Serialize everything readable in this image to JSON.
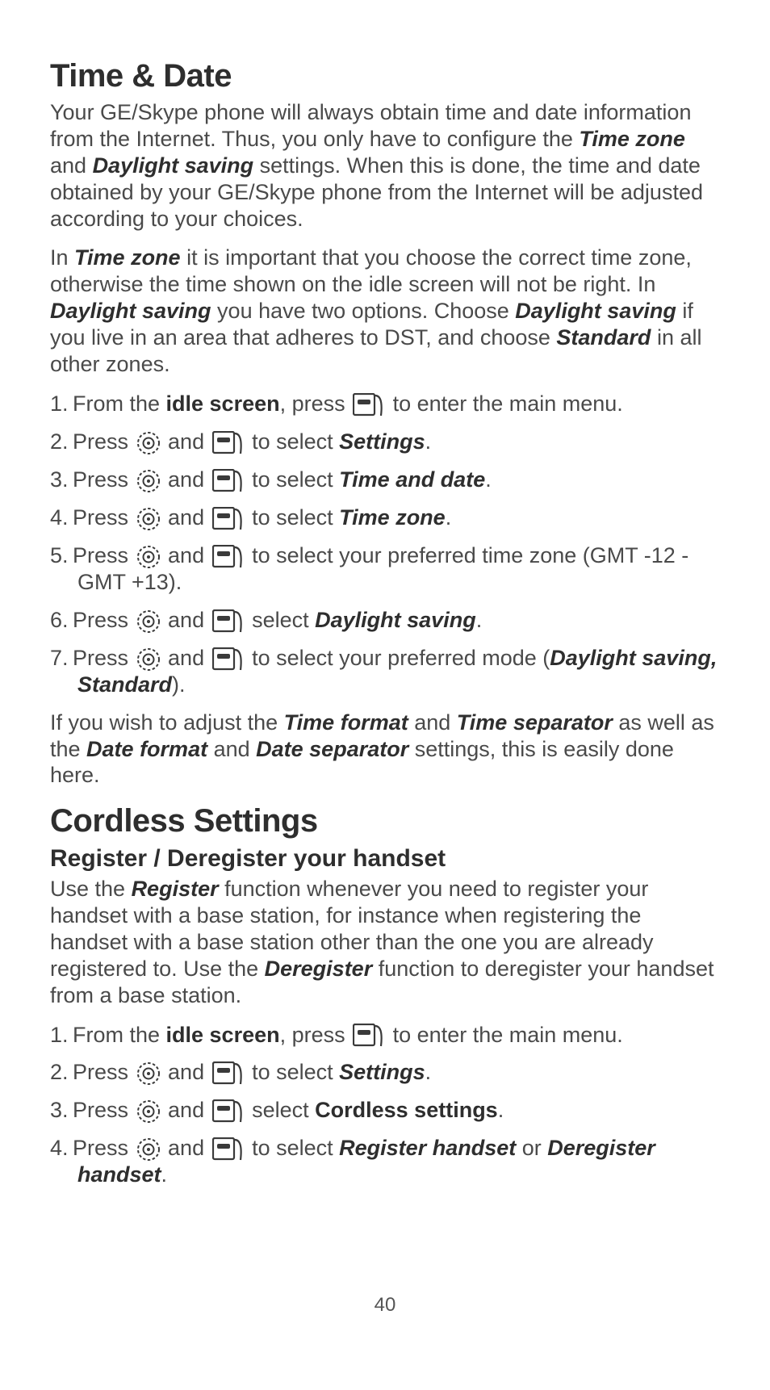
{
  "section1": {
    "heading": "Time & Date",
    "para1_parts": [
      "Your GE/Skype phone will always obtain time and date information from the Internet. Thus, you only have to configure the ",
      "Time zone",
      " and ",
      "Daylight saving",
      " settings. When this is done, the time and date obtained by your GE/Skype phone from the Internet will be adjusted according to your choices."
    ],
    "para2_parts": [
      "In ",
      "Time zone",
      " it is important that you choose the correct time zone, otherwise the time shown on the idle screen will not be right. In ",
      "Daylight saving",
      " you have two options. Choose ",
      "Daylight saving",
      " if you live in an area that adheres to DST, and choose ",
      "Standard",
      " in all other zones."
    ],
    "steps": [
      {
        "n": "1.",
        "pre": "From the ",
        "bold": "idle screen",
        "mid": ", press  ",
        "icons": [
          "menu"
        ],
        "post": " to enter the main menu."
      },
      {
        "n": "2.",
        "pre": "Press ",
        "icons": [
          "nav",
          "menu"
        ],
        "mid2": " and ",
        "post": " to select ",
        "bi": "Settings",
        "tail": "."
      },
      {
        "n": "3.",
        "pre": "Press ",
        "icons": [
          "nav",
          "menu"
        ],
        "mid2": " and ",
        "post": " to select ",
        "bi": "Time and date",
        "tail": "."
      },
      {
        "n": "4.",
        "pre": "Press ",
        "icons": [
          "nav",
          "menu"
        ],
        "mid2": " and ",
        "post": " to select ",
        "bi": "Time zone",
        "tail": "."
      },
      {
        "n": "5.",
        "pre": "Press ",
        "icons": [
          "nav",
          "menu"
        ],
        "mid2": " and ",
        "post": " to select your preferred time zone (GMT -12 -GMT +13)."
      },
      {
        "n": "6.",
        "pre": "Press ",
        "icons": [
          "nav",
          "menu"
        ],
        "mid2": " and ",
        "post": " select ",
        "bi": "Daylight saving",
        "tail": "."
      },
      {
        "n": "7.",
        "pre": "Press ",
        "icons": [
          "nav",
          "menu"
        ],
        "mid2": " and ",
        "post": " to select your preferred mode (",
        "bi": "Daylight saving, Standard",
        "tail": ")."
      }
    ],
    "para3_parts": [
      "If you wish to adjust the ",
      "Time format",
      " and ",
      "Time separator",
      " as well as the ",
      "Date format",
      " and ",
      "Date separator",
      " settings, this is easily done here."
    ]
  },
  "section2": {
    "heading": "Cordless Settings",
    "subheading": "Register / Deregister your handset",
    "para1_parts": [
      "Use the ",
      "Register",
      " function whenever you need to register your handset with a base station, for instance when registering the handset with a base station other than the one you are already registered to. Use the ",
      "Deregister",
      " function to deregister your handset from a base station."
    ],
    "steps": [
      {
        "n": "1.",
        "pre": "From the ",
        "bold": "idle screen",
        "mid": ", press  ",
        "icons": [
          "menu"
        ],
        "post": " to enter the main menu."
      },
      {
        "n": "2.",
        "pre": "Press ",
        "icons": [
          "nav",
          "menu"
        ],
        "mid2": " and ",
        "post": " to select ",
        "bi": "Settings",
        "tail": "."
      },
      {
        "n": "3.",
        "pre": "Press ",
        "icons": [
          "nav",
          "menu"
        ],
        "mid2": " and ",
        "post": " select ",
        "b": "Cordless settings",
        "tail": "."
      },
      {
        "n": "4.",
        "pre": "Press ",
        "icons": [
          "nav",
          "menu"
        ],
        "mid2": " and ",
        "post": " to select ",
        "bi": "Register handset",
        "mid3": " or ",
        "bi2": "Deregister handset",
        "tail": "."
      }
    ]
  },
  "page_number": "40",
  "colors": {
    "text": "#4a4a4a",
    "heading": "#2e2e2e",
    "icon_stroke": "#3a3a3a",
    "background": "#ffffff"
  }
}
